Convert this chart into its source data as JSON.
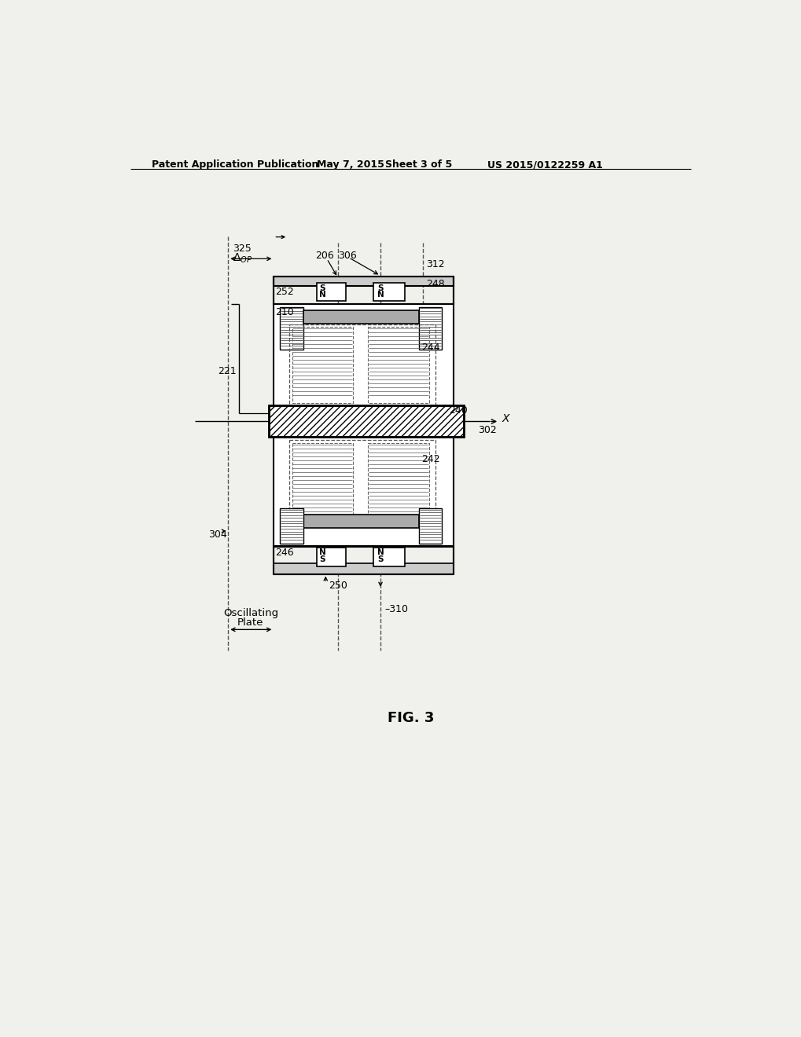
{
  "bg_color": "#f0f0ec",
  "header_text": "Patent Application Publication",
  "header_date": "May 7, 2015",
  "header_sheet": "Sheet 3 of 5",
  "header_patent": "US 2015/0122259 A1",
  "fig_label": "FIG. 3"
}
